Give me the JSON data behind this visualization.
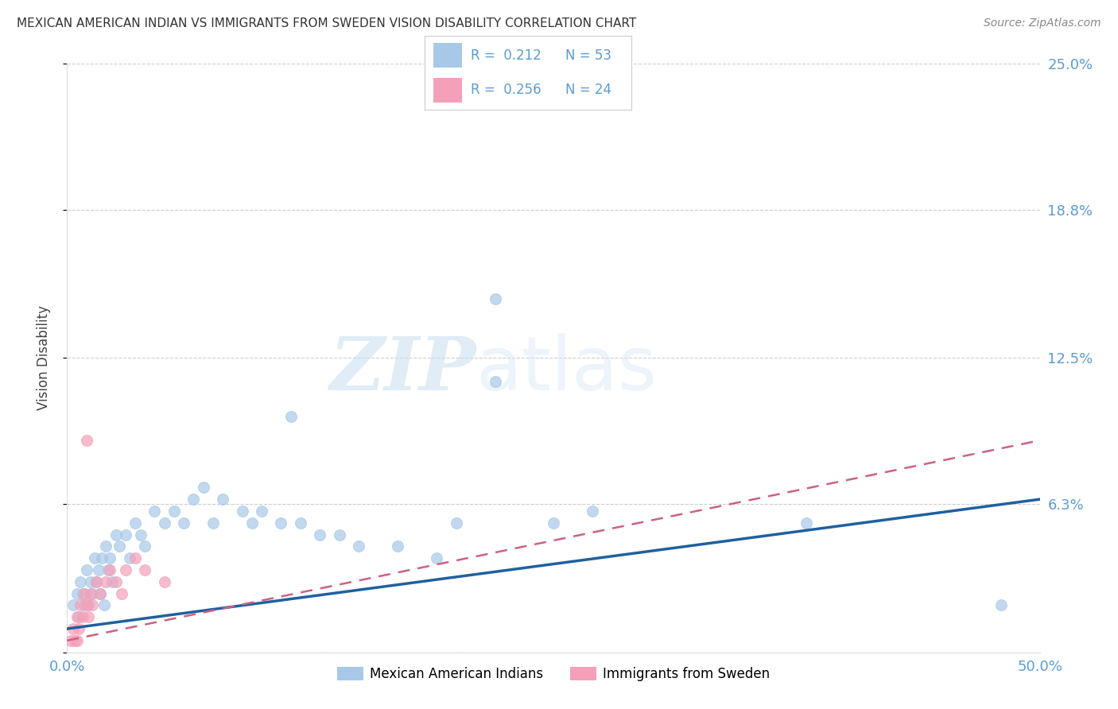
{
  "title": "MEXICAN AMERICAN INDIAN VS IMMIGRANTS FROM SWEDEN VISION DISABILITY CORRELATION CHART",
  "source": "Source: ZipAtlas.com",
  "ylabel": "Vision Disability",
  "xlim": [
    0,
    0.5
  ],
  "ylim": [
    0,
    0.25
  ],
  "yticks": [
    0.0,
    0.063,
    0.125,
    0.188,
    0.25
  ],
  "ytick_labels": [
    "",
    "6.3%",
    "12.5%",
    "18.8%",
    "25.0%"
  ],
  "xticks": [
    0.0,
    0.1,
    0.2,
    0.3,
    0.4,
    0.5
  ],
  "xtick_labels": [
    "0.0%",
    "",
    "",
    "",
    "",
    "50.0%"
  ],
  "R_blue": 0.212,
  "N_blue": 53,
  "R_pink": 0.256,
  "N_pink": 24,
  "blue_color": "#a8c8e8",
  "pink_color": "#f4a0b8",
  "blue_line_color": "#2060a0",
  "pink_line_color": "#d06080",
  "axis_color": "#5b9bd5",
  "watermark_zip": "ZIP",
  "watermark_atlas": "atlas",
  "legend_label_blue": "Mexican American Indians",
  "legend_label_pink": "Immigrants from Sweden",
  "blue_line_x0": 0.0,
  "blue_line_y0": 0.01,
  "blue_line_x1": 0.5,
  "blue_line_y1": 0.065,
  "pink_line_x0": 0.0,
  "pink_line_y0": 0.005,
  "pink_line_x1": 0.5,
  "pink_line_y1": 0.09,
  "blue_x": [
    0.003,
    0.005,
    0.006,
    0.007,
    0.008,
    0.009,
    0.01,
    0.011,
    0.012,
    0.013,
    0.014,
    0.015,
    0.016,
    0.017,
    0.018,
    0.019,
    0.02,
    0.021,
    0.022,
    0.023,
    0.025,
    0.027,
    0.03,
    0.032,
    0.035,
    0.038,
    0.04,
    0.045,
    0.05,
    0.055,
    0.06,
    0.065,
    0.07,
    0.075,
    0.08,
    0.09,
    0.095,
    0.1,
    0.11,
    0.115,
    0.12,
    0.13,
    0.14,
    0.15,
    0.17,
    0.19,
    0.2,
    0.22,
    0.25,
    0.27,
    0.38,
    0.48,
    0.22
  ],
  "blue_y": [
    0.02,
    0.025,
    0.015,
    0.03,
    0.025,
    0.02,
    0.035,
    0.02,
    0.03,
    0.025,
    0.04,
    0.03,
    0.035,
    0.025,
    0.04,
    0.02,
    0.045,
    0.035,
    0.04,
    0.03,
    0.05,
    0.045,
    0.05,
    0.04,
    0.055,
    0.05,
    0.045,
    0.06,
    0.055,
    0.06,
    0.055,
    0.065,
    0.07,
    0.055,
    0.065,
    0.06,
    0.055,
    0.06,
    0.055,
    0.1,
    0.055,
    0.05,
    0.05,
    0.045,
    0.045,
    0.04,
    0.055,
    0.115,
    0.055,
    0.06,
    0.055,
    0.02,
    0.15
  ],
  "pink_x": [
    0.002,
    0.003,
    0.004,
    0.005,
    0.006,
    0.007,
    0.008,
    0.009,
    0.01,
    0.011,
    0.012,
    0.013,
    0.015,
    0.017,
    0.02,
    0.022,
    0.025,
    0.028,
    0.03,
    0.035,
    0.04,
    0.05,
    0.01,
    0.005
  ],
  "pink_y": [
    0.005,
    0.01,
    0.005,
    0.015,
    0.01,
    0.02,
    0.015,
    0.025,
    0.02,
    0.015,
    0.025,
    0.02,
    0.03,
    0.025,
    0.03,
    0.035,
    0.03,
    0.025,
    0.035,
    0.04,
    0.035,
    0.03,
    0.09,
    0.005
  ]
}
